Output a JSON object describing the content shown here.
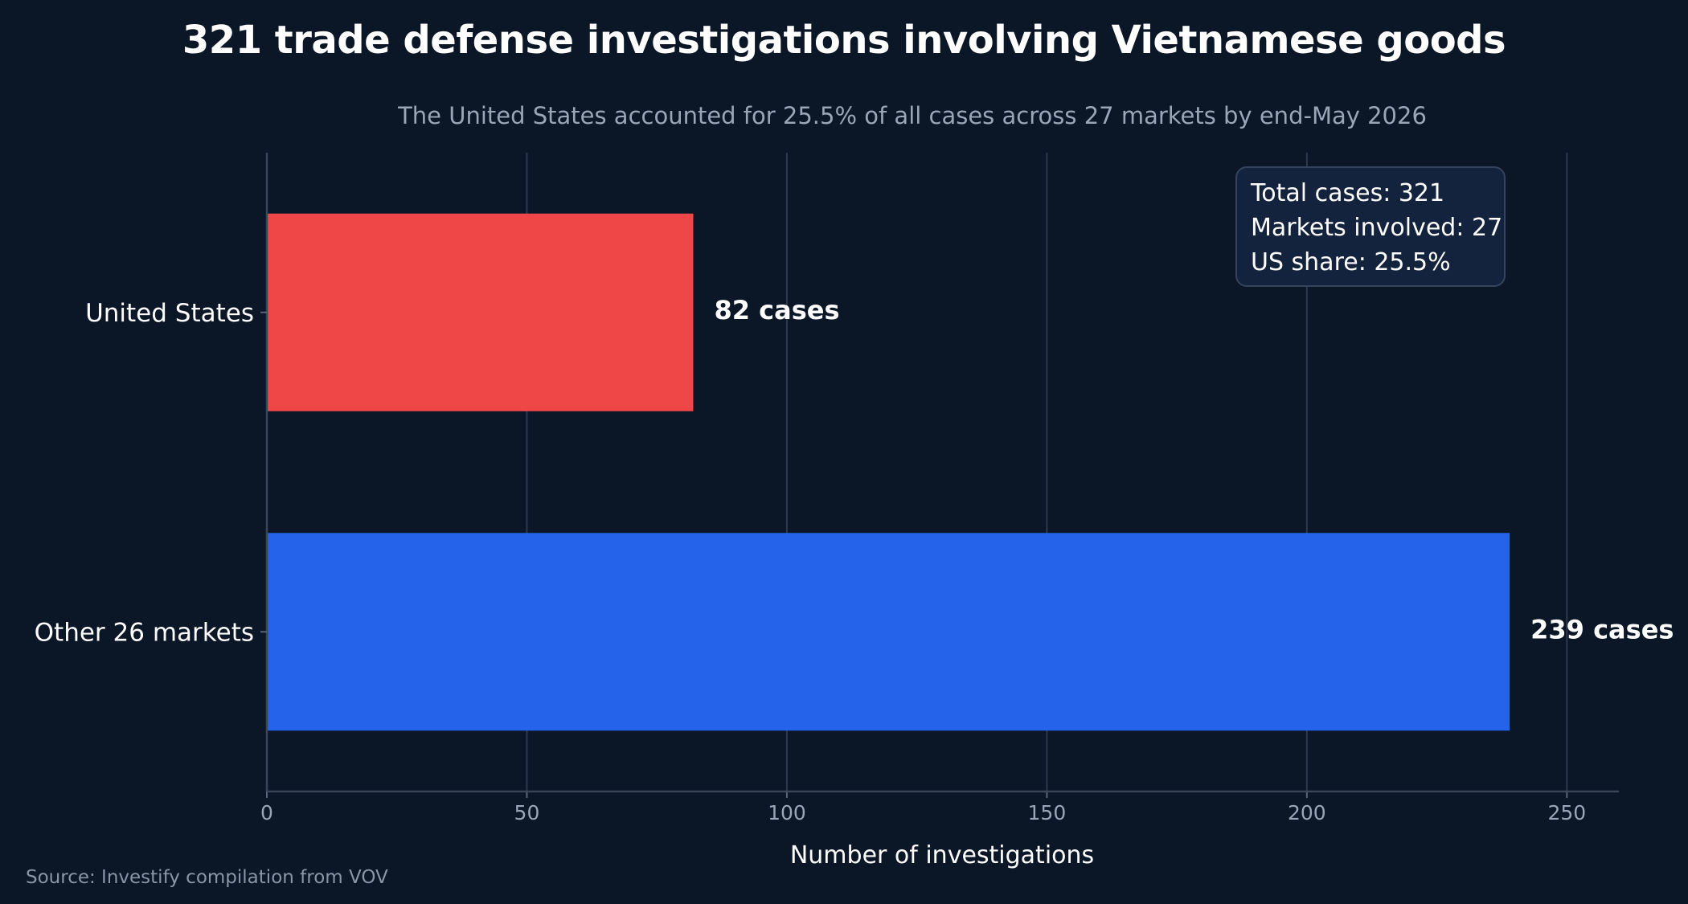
{
  "title": "321 trade defense investigations involving Vietnamese goods",
  "subtitle": "The United States accounted for 25.5% of all cases across 27 markets by end-May 2026",
  "info_box": {
    "total": "Total cases: 321",
    "markets": "Markets involved: 27",
    "us_share": "US share: 25.5%"
  },
  "source": "Source: Investify compilation from VOV",
  "chart_data": {
    "type": "bar",
    "orientation": "horizontal",
    "categories": [
      "United States",
      "Other 26 markets"
    ],
    "values": [
      82,
      239
    ],
    "data_labels": [
      "82 cases",
      "239 cases"
    ],
    "colors": [
      "#ef4648",
      "#2563eb"
    ],
    "xlabel": "Number of investigations",
    "xlim": [
      0,
      260
    ],
    "xticks": [
      0,
      50,
      100,
      150,
      200,
      250
    ],
    "grid": "vertical"
  }
}
